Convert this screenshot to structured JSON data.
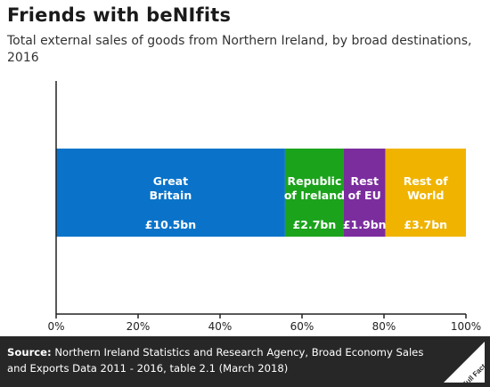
{
  "title": "Friends with beNIfits",
  "subtitle": "Total external sales of goods from Northern Ireland, by broad destinations, 2016",
  "source_label": "Source:",
  "source_text": "Northern Ireland Statistics and Research Agency, Broad Economy Sales and Exports Data 2011 - 2016, table 2.1 (March 2018)",
  "brand": "Full Fact",
  "chart_data": {
    "type": "bar",
    "orientation": "horizontal",
    "stacked": true,
    "normalized_percent": true,
    "xlim": [
      0,
      100
    ],
    "xticks": [
      "0%",
      "20%",
      "40%",
      "60%",
      "80%",
      "100%"
    ],
    "grid": false,
    "segments": [
      {
        "label_lines": [
          "Great",
          "Britain"
        ],
        "value_label": "£10.5bn",
        "value_bn": 10.5,
        "color": "#0a73c9"
      },
      {
        "label_lines": [
          "Republic",
          "of Ireland"
        ],
        "value_label": "£2.7bn",
        "value_bn": 2.7,
        "color": "#1ca31c"
      },
      {
        "label_lines": [
          "Rest",
          "of EU"
        ],
        "value_label": "£1.9bn",
        "value_bn": 1.9,
        "color": "#7b2d9e"
      },
      {
        "label_lines": [
          "Rest of",
          "World"
        ],
        "value_label": "£3.7bn",
        "value_bn": 3.7,
        "color": "#f0b400"
      }
    ],
    "axis_color": "#222222"
  }
}
